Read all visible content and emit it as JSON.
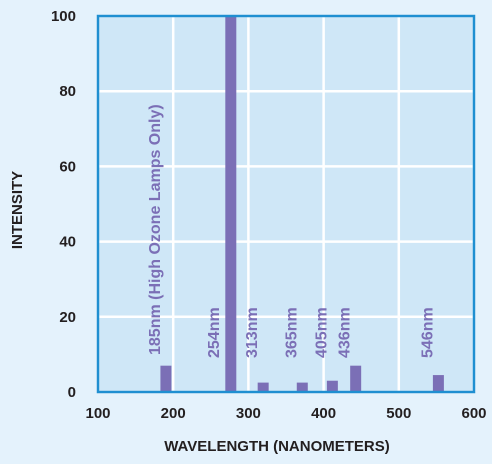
{
  "chart_data": {
    "type": "bar",
    "xlabel": "WAVELENGTH (NANOMETERS)",
    "ylabel": "INTENSITY",
    "xlim": [
      100,
      600
    ],
    "ylim": [
      0,
      100
    ],
    "xticks": [
      "100",
      "200",
      "300",
      "400",
      "500",
      "600"
    ],
    "yticks": [
      "0",
      "20",
      "40",
      "60",
      "80",
      "100"
    ],
    "grid": true,
    "bars": [
      {
        "x": 185,
        "value": 7,
        "label": "185nm (High Ozone Lamps Only)"
      },
      {
        "x": 254,
        "value": 100,
        "label": "254nm"
      },
      {
        "x": 313,
        "value": 2.5,
        "label": "313nm"
      },
      {
        "x": 365,
        "value": 2.5,
        "label": "365nm"
      },
      {
        "x": 405,
        "value": 3,
        "label": "405nm"
      },
      {
        "x": 436,
        "value": 7,
        "label": "436nm"
      },
      {
        "x": 546,
        "value": 4.5,
        "label": "546nm"
      }
    ],
    "colors": {
      "background": "#e4f2fc",
      "plot": "#cfe7f7",
      "grid": "#ffffff",
      "bar": "#7b6fb6",
      "frame": "#1f8fd1"
    }
  }
}
